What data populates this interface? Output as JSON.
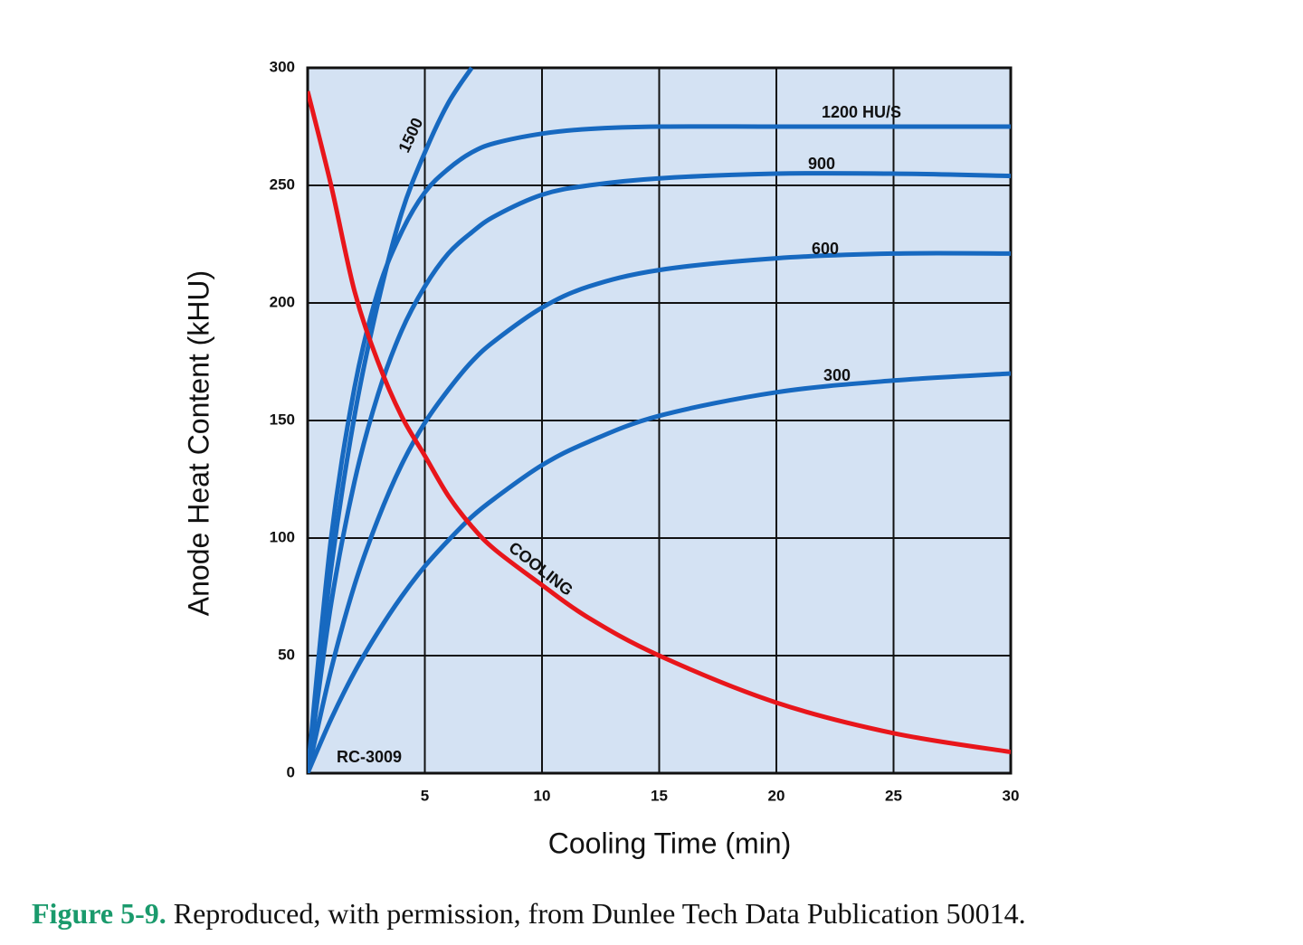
{
  "chart_data": {
    "type": "line",
    "xlabel": "Cooling Time (min)",
    "ylabel": "Anode Heat Content (kHU)",
    "x": [
      0,
      1,
      2,
      3,
      4,
      5,
      6,
      7,
      8,
      10,
      12,
      15,
      20,
      25,
      30
    ],
    "series": [
      {
        "name": "1500",
        "color": "#1769c0",
        "values": [
          0,
          87,
          152,
          200,
          238,
          264,
          285,
          300,
          null,
          null,
          null,
          null,
          null,
          null,
          null
        ]
      },
      {
        "name": "1200 HU/S",
        "color": "#1769c0",
        "values": [
          0,
          100,
          164,
          205,
          230,
          247,
          257,
          264,
          268,
          272,
          274,
          275,
          275,
          275,
          275
        ]
      },
      {
        "name": "900",
        "color": "#1769c0",
        "values": [
          0,
          72,
          124,
          161,
          188,
          207,
          221,
          230,
          237,
          246,
          250,
          253,
          255,
          255,
          254
        ]
      },
      {
        "name": "600",
        "color": "#1769c0",
        "values": [
          0,
          44,
          80,
          108,
          131,
          149,
          163,
          175,
          184,
          198,
          207,
          214,
          219,
          221,
          221
        ]
      },
      {
        "name": "300",
        "color": "#1769c0",
        "values": [
          0,
          23,
          43,
          60,
          75,
          88,
          99,
          109,
          117,
          131,
          141,
          152,
          162,
          167,
          170
        ]
      },
      {
        "name": "COOLING",
        "color": "#e8161b",
        "values": [
          290,
          250,
          205,
          175,
          152,
          135,
          118,
          105,
          95,
          80,
          66,
          50,
          30,
          17,
          9
        ]
      }
    ],
    "xlim": [
      0,
      30
    ],
    "xticks": [
      5,
      10,
      15,
      20,
      25,
      30
    ],
    "ylim": [
      0,
      300
    ],
    "yticks": [
      0,
      50,
      100,
      150,
      200,
      250,
      300
    ],
    "grid": true,
    "plot_background": "#d4e2f3",
    "annotations": [
      "RC-3009"
    ],
    "caption": {
      "label": "Figure 5-9.",
      "text": "Reproduced, with permission, from Dunlee Tech Data Publication 50014."
    }
  }
}
